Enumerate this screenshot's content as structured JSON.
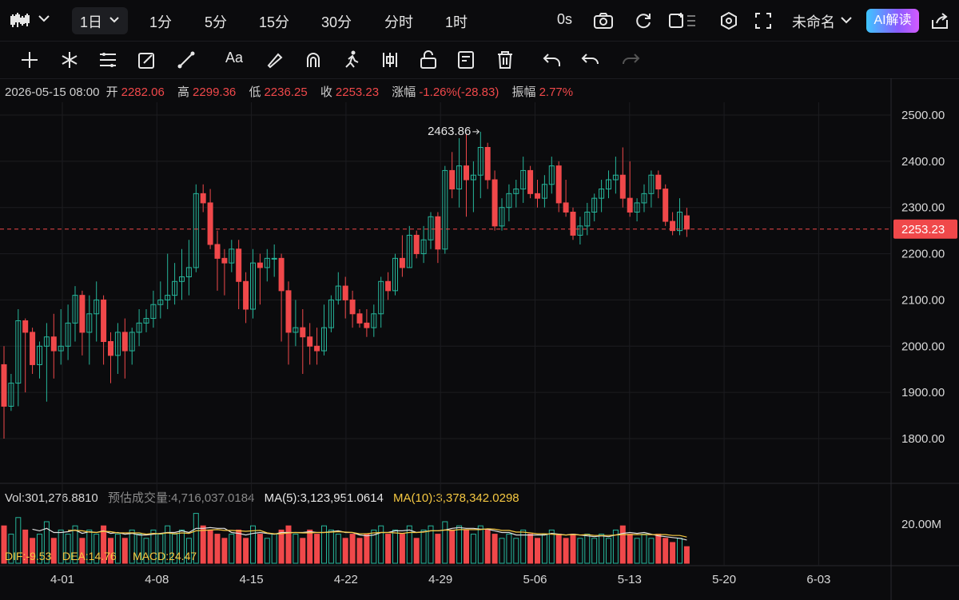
{
  "topbar": {
    "chart_type_icon": "candlestick-chart-icon",
    "periods": [
      "1日",
      "1分",
      "5分",
      "15分",
      "30分",
      "分时",
      "1时"
    ],
    "active_period": "1日",
    "countdown": "0s",
    "layout_name": "未命名",
    "ai_button": "AI解读"
  },
  "toolbar": {
    "tools": [
      "crosshair-icon",
      "star-line-icon",
      "parallel-lines-icon",
      "pencil-box-icon",
      "ruler-icon",
      "text-icon",
      "highlighter-icon",
      "magnet-icon",
      "person-run-icon",
      "bars-icon",
      "lock-icon",
      "edit-list-icon",
      "trash-icon",
      "undo-icon",
      "undo-alt-icon",
      "redo-icon"
    ],
    "text_tool_label": "Aa"
  },
  "ohlc": {
    "datetime": "2026-05-15 08:00",
    "open_label": "开",
    "open": "2282.06",
    "high_label": "高",
    "high": "2299.36",
    "low_label": "低",
    "low": "2236.25",
    "close_label": "收",
    "close": "2253.23",
    "change_label": "涨幅",
    "change": "-1.26%(-28.83)",
    "amplitude_label": "振幅",
    "amplitude": "2.77%"
  },
  "volume_info": {
    "vol": "Vol:301,276.8810",
    "est_label": "预估成交量:",
    "est": "4,716,037.0184",
    "ma5": "MA(5):3,123,951.0614",
    "ma10": "MA(10):3,378,342.0298"
  },
  "macd": {
    "dif": "DIF:-9.53",
    "dea": "DEA:14.76",
    "macd": "MACD:24.47"
  },
  "colors": {
    "up": "#26b59a",
    "down": "#f0484a",
    "ma10": "#f5c842",
    "ma5": "#e0e0e0",
    "bg": "#0b0b0d"
  },
  "chart_data": {
    "type": "candlestick",
    "y_ticks": [
      "2500.00",
      "2400.00",
      "2300.00",
      "2200.00",
      "2100.00",
      "2000.00",
      "1900.00",
      "1800.00"
    ],
    "ylim": [
      1780,
      2520
    ],
    "current_price": "2253.23",
    "max_marker": "2463.86",
    "x_ticks": [
      "4-01",
      "4-08",
      "4-15",
      "4-22",
      "4-29",
      "5-06",
      "5-13",
      "5-20",
      "6-03"
    ],
    "volume_tick": "20.00M",
    "candles": [
      [
        1960,
        2000,
        1800,
        1870
      ],
      [
        1870,
        1940,
        1860,
        1920
      ],
      [
        1920,
        2080,
        1870,
        2055
      ],
      [
        2055,
        2060,
        1900,
        2030
      ],
      [
        2030,
        2040,
        1940,
        1960
      ],
      [
        1960,
        2010,
        1930,
        2000
      ],
      [
        2000,
        2050,
        1880,
        2020
      ],
      [
        2020,
        2070,
        1930,
        1990
      ],
      [
        1990,
        2080,
        1960,
        2000
      ],
      [
        2000,
        2090,
        1970,
        2050
      ],
      [
        2050,
        2130,
        2010,
        2110
      ],
      [
        2110,
        2120,
        1980,
        2030
      ],
      [
        2030,
        2110,
        1960,
        2070
      ],
      [
        2070,
        2140,
        2010,
        2100
      ],
      [
        2100,
        2110,
        1960,
        2010
      ],
      [
        2010,
        2030,
        1920,
        1980
      ],
      [
        1980,
        2050,
        1940,
        2030
      ],
      [
        2030,
        2060,
        1930,
        1990
      ],
      [
        1990,
        2040,
        1960,
        2030
      ],
      [
        2030,
        2080,
        2000,
        2050
      ],
      [
        2050,
        2080,
        2030,
        2060
      ],
      [
        2060,
        2120,
        2040,
        2090
      ],
      [
        2090,
        2140,
        2060,
        2100
      ],
      [
        2100,
        2200,
        2080,
        2110
      ],
      [
        2110,
        2180,
        2090,
        2140
      ],
      [
        2140,
        2210,
        2100,
        2150
      ],
      [
        2150,
        2230,
        2110,
        2170
      ],
      [
        2170,
        2350,
        2160,
        2330
      ],
      [
        2330,
        2350,
        2290,
        2310
      ],
      [
        2310,
        2340,
        2210,
        2220
      ],
      [
        2220,
        2250,
        2120,
        2190
      ],
      [
        2190,
        2210,
        2110,
        2180
      ],
      [
        2180,
        2230,
        2160,
        2210
      ],
      [
        2210,
        2230,
        2080,
        2140
      ],
      [
        2140,
        2160,
        2050,
        2080
      ],
      [
        2080,
        2210,
        2060,
        2180
      ],
      [
        2180,
        2200,
        2090,
        2170
      ],
      [
        2170,
        2210,
        2140,
        2190
      ],
      [
        2190,
        2220,
        2150,
        2190
      ],
      [
        2190,
        2200,
        2010,
        2120
      ],
      [
        2120,
        2140,
        1960,
        2030
      ],
      [
        2030,
        2100,
        2000,
        2040
      ],
      [
        2040,
        2080,
        1940,
        2020
      ],
      [
        2020,
        2050,
        1960,
        2000
      ],
      [
        2000,
        2040,
        1960,
        1990
      ],
      [
        1990,
        2090,
        1980,
        2040
      ],
      [
        2040,
        2110,
        2030,
        2100
      ],
      [
        2100,
        2160,
        2090,
        2130
      ],
      [
        2130,
        2150,
        2060,
        2100
      ],
      [
        2100,
        2120,
        2040,
        2070
      ],
      [
        2070,
        2080,
        2040,
        2050
      ],
      [
        2050,
        2080,
        2020,
        2040
      ],
      [
        2040,
        2090,
        2020,
        2070
      ],
      [
        2070,
        2150,
        2040,
        2140
      ],
      [
        2140,
        2160,
        2100,
        2120
      ],
      [
        2120,
        2200,
        2110,
        2190
      ],
      [
        2190,
        2240,
        2150,
        2170
      ],
      [
        2170,
        2260,
        2170,
        2240
      ],
      [
        2240,
        2250,
        2190,
        2200
      ],
      [
        2200,
        2260,
        2180,
        2230
      ],
      [
        2230,
        2290,
        2210,
        2280
      ],
      [
        2280,
        2290,
        2180,
        2210
      ],
      [
        2210,
        2390,
        2200,
        2380
      ],
      [
        2380,
        2420,
        2320,
        2340
      ],
      [
        2340,
        2450,
        2300,
        2390
      ],
      [
        2390,
        2460,
        2280,
        2360
      ],
      [
        2360,
        2400,
        2290,
        2370
      ],
      [
        2370,
        2464,
        2320,
        2430
      ],
      [
        2430,
        2440,
        2340,
        2360
      ],
      [
        2360,
        2380,
        2250,
        2260
      ],
      [
        2260,
        2320,
        2250,
        2300
      ],
      [
        2300,
        2350,
        2270,
        2330
      ],
      [
        2330,
        2360,
        2300,
        2340
      ],
      [
        2340,
        2410,
        2310,
        2380
      ],
      [
        2380,
        2390,
        2320,
        2330
      ],
      [
        2330,
        2360,
        2300,
        2320
      ],
      [
        2320,
        2370,
        2300,
        2350
      ],
      [
        2350,
        2410,
        2330,
        2390
      ],
      [
        2390,
        2400,
        2290,
        2310
      ],
      [
        2310,
        2360,
        2280,
        2290
      ],
      [
        2290,
        2300,
        2230,
        2240
      ],
      [
        2240,
        2280,
        2220,
        2260
      ],
      [
        2260,
        2310,
        2240,
        2290
      ],
      [
        2290,
        2330,
        2270,
        2320
      ],
      [
        2320,
        2360,
        2290,
        2340
      ],
      [
        2340,
        2380,
        2320,
        2360
      ],
      [
        2360,
        2410,
        2330,
        2370
      ],
      [
        2370,
        2430,
        2300,
        2320
      ],
      [
        2320,
        2400,
        2280,
        2290
      ],
      [
        2290,
        2320,
        2270,
        2310
      ],
      [
        2310,
        2350,
        2290,
        2330
      ],
      [
        2330,
        2380,
        2300,
        2370
      ],
      [
        2370,
        2380,
        2320,
        2340
      ],
      [
        2340,
        2350,
        2260,
        2270
      ],
      [
        2270,
        2290,
        2240,
        2250
      ],
      [
        2250,
        2320,
        2240,
        2290
      ],
      [
        2282.06,
        2299.36,
        2236.25,
        2253.23
      ]
    ],
    "volumes": [
      9,
      7,
      11,
      8,
      6,
      7,
      10,
      6,
      8,
      7,
      9,
      6,
      8,
      7,
      9,
      6,
      7,
      6,
      8,
      7,
      6,
      8,
      7,
      9,
      7,
      8,
      6,
      12,
      9,
      8,
      7,
      6,
      7,
      8,
      6,
      9,
      7,
      6,
      7,
      8,
      9,
      7,
      6,
      8,
      7,
      9,
      8,
      7,
      6,
      7,
      6,
      7,
      8,
      9,
      7,
      8,
      7,
      9,
      6,
      8,
      9,
      7,
      10,
      8,
      9,
      8,
      7,
      9,
      8,
      7,
      6,
      7,
      6,
      8,
      7,
      6,
      7,
      8,
      7,
      6,
      7,
      6,
      7,
      6,
      7,
      6,
      8,
      9,
      7,
      6,
      7,
      6,
      7,
      6,
      5,
      6,
      4
    ]
  }
}
